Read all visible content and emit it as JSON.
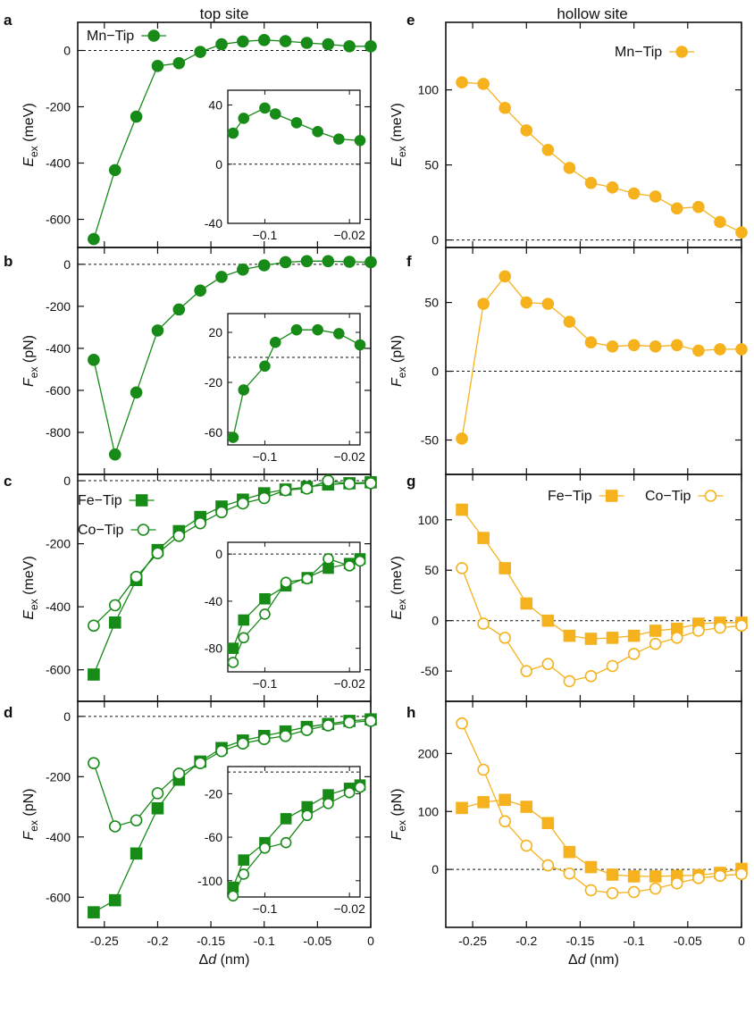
{
  "colors": {
    "green": "#178a17",
    "orange": "#f5b21c"
  },
  "column_titles": {
    "left": "top site",
    "right": "hollow site"
  },
  "chart_data": [
    {
      "id": "a",
      "panel_label": "a",
      "type": "line",
      "ylabel_main": "E",
      "ylabel_sub": "ex",
      "ylabel_unit": " (meV)",
      "xlabel": "",
      "ylim": [
        -700,
        100
      ],
      "yticks": [
        -600,
        -400,
        -200,
        0
      ],
      "xlim": [
        -0.275,
        0
      ],
      "xticks": [],
      "legend": {
        "placement": "top-left"
      },
      "series": [
        {
          "name": "Mn−Tip",
          "color": "green",
          "marker": "circle",
          "filled": true,
          "x": [
            -0.26,
            -0.24,
            -0.22,
            -0.2,
            -0.18,
            -0.16,
            -0.14,
            -0.12,
            -0.1,
            -0.08,
            -0.06,
            -0.04,
            -0.02,
            0
          ],
          "y": [
            -670,
            -425,
            -235,
            -55,
            -45,
            -5,
            22,
            32,
            37,
            33,
            27,
            22,
            15,
            15
          ]
        }
      ],
      "inset": {
        "xlim": [
          -0.135,
          -0.01
        ],
        "ylim": [
          -40,
          50
        ],
        "yticks": [
          -40,
          0,
          40
        ],
        "xticks": [
          -0.1,
          -0.02
        ],
        "xtick_labels": [
          "−0.1",
          "−0.02"
        ],
        "series": [
          {
            "color": "green",
            "marker": "circle",
            "filled": true,
            "x": [
              -0.13,
              -0.12,
              -0.1,
              -0.09,
              -0.07,
              -0.05,
              -0.03,
              -0.01
            ],
            "y": [
              21,
              31,
              38,
              34,
              28,
              22,
              17,
              16
            ]
          }
        ]
      }
    },
    {
      "id": "b",
      "panel_label": "b",
      "type": "line",
      "ylabel_main": "F",
      "ylabel_sub": "ex",
      "ylabel_unit": " (pN)",
      "xlabel": "",
      "ylim": [
        -1000,
        80
      ],
      "yticks": [
        -800,
        -600,
        -400,
        -200,
        0
      ],
      "xlim": [
        -0.275,
        0
      ],
      "xticks": [],
      "series": [
        {
          "color": "green",
          "marker": "circle",
          "filled": true,
          "x": [
            -0.26,
            -0.24,
            -0.22,
            -0.2,
            -0.18,
            -0.16,
            -0.14,
            -0.12,
            -0.1,
            -0.08,
            -0.06,
            -0.04,
            -0.02,
            0
          ],
          "y": [
            -455,
            -905,
            -610,
            -315,
            -215,
            -125,
            -60,
            -25,
            -5,
            10,
            15,
            15,
            12,
            10
          ]
        }
      ],
      "inset": {
        "xlim": [
          -0.135,
          -0.01
        ],
        "ylim": [
          -70,
          35
        ],
        "yticks": [
          -60,
          -20,
          20
        ],
        "xticks": [
          -0.1,
          -0.02
        ],
        "xtick_labels": [
          "−0.1",
          "−0.02"
        ],
        "series": [
          {
            "color": "green",
            "marker": "circle",
            "filled": true,
            "x": [
              -0.13,
              -0.12,
              -0.1,
              -0.09,
              -0.07,
              -0.05,
              -0.03,
              -0.01
            ],
            "y": [
              -64,
              -26,
              -7,
              12,
              22,
              22,
              19,
              10
            ]
          }
        ]
      }
    },
    {
      "id": "c",
      "panel_label": "c",
      "type": "line",
      "ylabel_main": "E",
      "ylabel_sub": "ex",
      "ylabel_unit": " (meV)",
      "xlabel": "",
      "ylim": [
        -700,
        20
      ],
      "yticks": [
        -600,
        -400,
        -200,
        0
      ],
      "xlim": [
        -0.275,
        0
      ],
      "xticks": [],
      "legend": {
        "placement": "top-left"
      },
      "series": [
        {
          "name": "Fe−Tip",
          "color": "green",
          "marker": "square",
          "filled": true,
          "x": [
            -0.26,
            -0.24,
            -0.22,
            -0.2,
            -0.18,
            -0.16,
            -0.14,
            -0.12,
            -0.1,
            -0.08,
            -0.06,
            -0.04,
            -0.02,
            0
          ],
          "y": [
            -615,
            -450,
            -315,
            -220,
            -160,
            -115,
            -82,
            -60,
            -40,
            -28,
            -20,
            -12,
            -8,
            -5
          ]
        },
        {
          "name": "Co−Tip",
          "color": "green",
          "marker": "circle",
          "filled": false,
          "x": [
            -0.26,
            -0.24,
            -0.22,
            -0.2,
            -0.18,
            -0.16,
            -0.14,
            -0.12,
            -0.1,
            -0.08,
            -0.06,
            -0.04,
            -0.02,
            0
          ],
          "y": [
            -460,
            -395,
            -305,
            -230,
            -175,
            -135,
            -100,
            -72,
            -55,
            -30,
            -25,
            0,
            -10,
            -8
          ]
        }
      ],
      "inset": {
        "xlim": [
          -0.135,
          -0.01
        ],
        "ylim": [
          -100,
          10
        ],
        "yticks": [
          -80,
          -40,
          0
        ],
        "xticks": [
          -0.1,
          -0.02
        ],
        "xtick_labels": [
          "−0.1",
          "−0.02"
        ],
        "series": [
          {
            "color": "green",
            "marker": "square",
            "filled": true,
            "x": [
              -0.13,
              -0.12,
              -0.1,
              -0.08,
              -0.06,
              -0.04,
              -0.02,
              -0.01
            ],
            "y": [
              -80,
              -56,
              -38,
              -27,
              -20,
              -12,
              -8,
              -4
            ]
          },
          {
            "color": "green",
            "marker": "circle",
            "filled": false,
            "x": [
              -0.13,
              -0.12,
              -0.1,
              -0.08,
              -0.06,
              -0.04,
              -0.02,
              -0.01
            ],
            "y": [
              -92,
              -71,
              -51,
              -24,
              -21,
              -4,
              -10,
              -6
            ]
          }
        ]
      }
    },
    {
      "id": "d",
      "panel_label": "d",
      "type": "line",
      "ylabel_main": "F",
      "ylabel_sub": "ex",
      "ylabel_unit": " (pN)",
      "xlabel": "Δd (nm)",
      "ylim": [
        -700,
        50
      ],
      "yticks": [
        -600,
        -400,
        -200,
        0
      ],
      "xlim": [
        -0.275,
        0
      ],
      "xticks": [
        -0.25,
        -0.2,
        -0.15,
        -0.1,
        -0.05,
        0
      ],
      "xtick_labels": [
        "-0.25",
        "-0.2",
        "-0.15",
        "-0.1",
        "-0.05",
        "0"
      ],
      "series": [
        {
          "color": "green",
          "marker": "square",
          "filled": true,
          "x": [
            -0.26,
            -0.24,
            -0.22,
            -0.2,
            -0.18,
            -0.16,
            -0.14,
            -0.12,
            -0.1,
            -0.08,
            -0.06,
            -0.04,
            -0.02,
            0
          ],
          "y": [
            -650,
            -610,
            -455,
            -305,
            -210,
            -150,
            -105,
            -80,
            -65,
            -50,
            -35,
            -25,
            -15,
            -10
          ]
        },
        {
          "color": "green",
          "marker": "circle",
          "filled": false,
          "x": [
            -0.26,
            -0.24,
            -0.22,
            -0.2,
            -0.18,
            -0.16,
            -0.14,
            -0.12,
            -0.1,
            -0.08,
            -0.06,
            -0.04,
            -0.02,
            0
          ],
          "y": [
            -155,
            -365,
            -345,
            -255,
            -190,
            -155,
            -115,
            -90,
            -75,
            -65,
            -45,
            -30,
            -20,
            -15
          ]
        }
      ],
      "inset": {
        "xlim": [
          -0.135,
          -0.01
        ],
        "ylim": [
          -115,
          5
        ],
        "yticks": [
          -100,
          -60,
          -20
        ],
        "xticks": [
          -0.1,
          -0.02
        ],
        "xtick_labels": [
          "−0.1",
          "−0.02"
        ],
        "series": [
          {
            "color": "green",
            "marker": "square",
            "filled": true,
            "x": [
              -0.13,
              -0.12,
              -0.1,
              -0.08,
              -0.06,
              -0.04,
              -0.02,
              -0.01
            ],
            "y": [
              -106,
              -81,
              -65,
              -43,
              -32,
              -21,
              -15,
              -12
            ]
          },
          {
            "color": "green",
            "marker": "circle",
            "filled": false,
            "x": [
              -0.13,
              -0.12,
              -0.1,
              -0.08,
              -0.06,
              -0.04,
              -0.02,
              -0.01
            ],
            "y": [
              -114,
              -94,
              -70,
              -65,
              -40,
              -29,
              -19,
              -14
            ]
          }
        ]
      }
    },
    {
      "id": "e",
      "panel_label": "e",
      "type": "line",
      "ylabel_main": "E",
      "ylabel_sub": "ex",
      "ylabel_unit": " (meV)",
      "xlabel": "",
      "ylim": [
        -5,
        145
      ],
      "yticks": [
        0,
        50,
        100
      ],
      "xlim": [
        -0.275,
        0
      ],
      "xticks": [],
      "legend": {
        "placement": "top-right"
      },
      "series": [
        {
          "name": "Mn−Tip",
          "color": "orange",
          "marker": "circle",
          "filled": true,
          "x": [
            -0.26,
            -0.24,
            -0.22,
            -0.2,
            -0.18,
            -0.16,
            -0.14,
            -0.12,
            -0.1,
            -0.08,
            -0.06,
            -0.04,
            -0.02,
            0
          ],
          "y": [
            105,
            104,
            88,
            73,
            60,
            48,
            38,
            35,
            31,
            29,
            21,
            22,
            12,
            5
          ]
        }
      ]
    },
    {
      "id": "f",
      "panel_label": "f",
      "type": "line",
      "ylabel_main": "F",
      "ylabel_sub": "ex",
      "ylabel_unit": " (pN)",
      "xlabel": "",
      "ylim": [
        -75,
        90
      ],
      "yticks": [
        -50,
        0,
        50
      ],
      "xlim": [
        -0.275,
        0
      ],
      "xticks": [],
      "series": [
        {
          "color": "orange",
          "marker": "circle",
          "filled": true,
          "x": [
            -0.26,
            -0.24,
            -0.22,
            -0.2,
            -0.18,
            -0.16,
            -0.14,
            -0.12,
            -0.1,
            -0.08,
            -0.06,
            -0.04,
            -0.02,
            0
          ],
          "y": [
            -49,
            49,
            69,
            50,
            49,
            36,
            21,
            18,
            19,
            18,
            19,
            15,
            16,
            16
          ]
        }
      ]
    },
    {
      "id": "g",
      "panel_label": "g",
      "type": "line",
      "ylabel_main": "E",
      "ylabel_sub": "ex",
      "ylabel_unit": " (meV)",
      "xlabel": "",
      "ylim": [
        -80,
        145
      ],
      "yticks": [
        -50,
        0,
        50,
        100
      ],
      "xlim": [
        -0.275,
        0
      ],
      "xticks": [],
      "legend": {
        "placement": "top-right"
      },
      "series": [
        {
          "name": "Fe−Tip",
          "color": "orange",
          "marker": "square",
          "filled": true,
          "x": [
            -0.26,
            -0.24,
            -0.22,
            -0.2,
            -0.18,
            -0.16,
            -0.14,
            -0.12,
            -0.1,
            -0.08,
            -0.06,
            -0.04,
            -0.02,
            0
          ],
          "y": [
            110,
            82,
            52,
            17,
            0,
            -15,
            -18,
            -17,
            -15,
            -10,
            -8,
            -3,
            -2,
            -2
          ]
        },
        {
          "name": "Co−Tip",
          "color": "orange",
          "marker": "circle",
          "filled": false,
          "x": [
            -0.26,
            -0.24,
            -0.22,
            -0.2,
            -0.18,
            -0.16,
            -0.14,
            -0.12,
            -0.1,
            -0.08,
            -0.06,
            -0.04,
            -0.02,
            0
          ],
          "y": [
            52,
            -3,
            -17,
            -50,
            -43,
            -60,
            -55,
            -45,
            -33,
            -23,
            -17,
            -10,
            -7,
            -5
          ]
        }
      ]
    },
    {
      "id": "h",
      "panel_label": "h",
      "type": "line",
      "ylabel_main": "F",
      "ylabel_sub": "ex",
      "ylabel_unit": " (pN)",
      "xlabel": "Δd (nm)",
      "ylim": [
        -100,
        290
      ],
      "yticks": [
        0,
        100,
        200
      ],
      "xlim": [
        -0.275,
        0
      ],
      "xticks": [
        -0.25,
        -0.2,
        -0.15,
        -0.1,
        -0.05,
        0
      ],
      "xtick_labels": [
        "-0.25",
        "-0.2",
        "-0.15",
        "-0.1",
        "-0.05",
        "0"
      ],
      "series": [
        {
          "color": "orange",
          "marker": "square",
          "filled": true,
          "x": [
            -0.26,
            -0.24,
            -0.22,
            -0.2,
            -0.18,
            -0.16,
            -0.14,
            -0.12,
            -0.1,
            -0.08,
            -0.06,
            -0.04,
            -0.02,
            0
          ],
          "y": [
            106,
            116,
            120,
            108,
            80,
            30,
            4,
            -9,
            -12,
            -12,
            -11,
            -10,
            -6,
            1
          ]
        },
        {
          "color": "orange",
          "marker": "circle",
          "filled": false,
          "x": [
            -0.26,
            -0.24,
            -0.22,
            -0.2,
            -0.18,
            -0.16,
            -0.14,
            -0.12,
            -0.1,
            -0.08,
            -0.06,
            -0.04,
            -0.02,
            0
          ],
          "y": [
            252,
            172,
            83,
            41,
            7,
            -7,
            -36,
            -41,
            -39,
            -33,
            -24,
            -15,
            -11,
            -8
          ]
        }
      ]
    }
  ]
}
